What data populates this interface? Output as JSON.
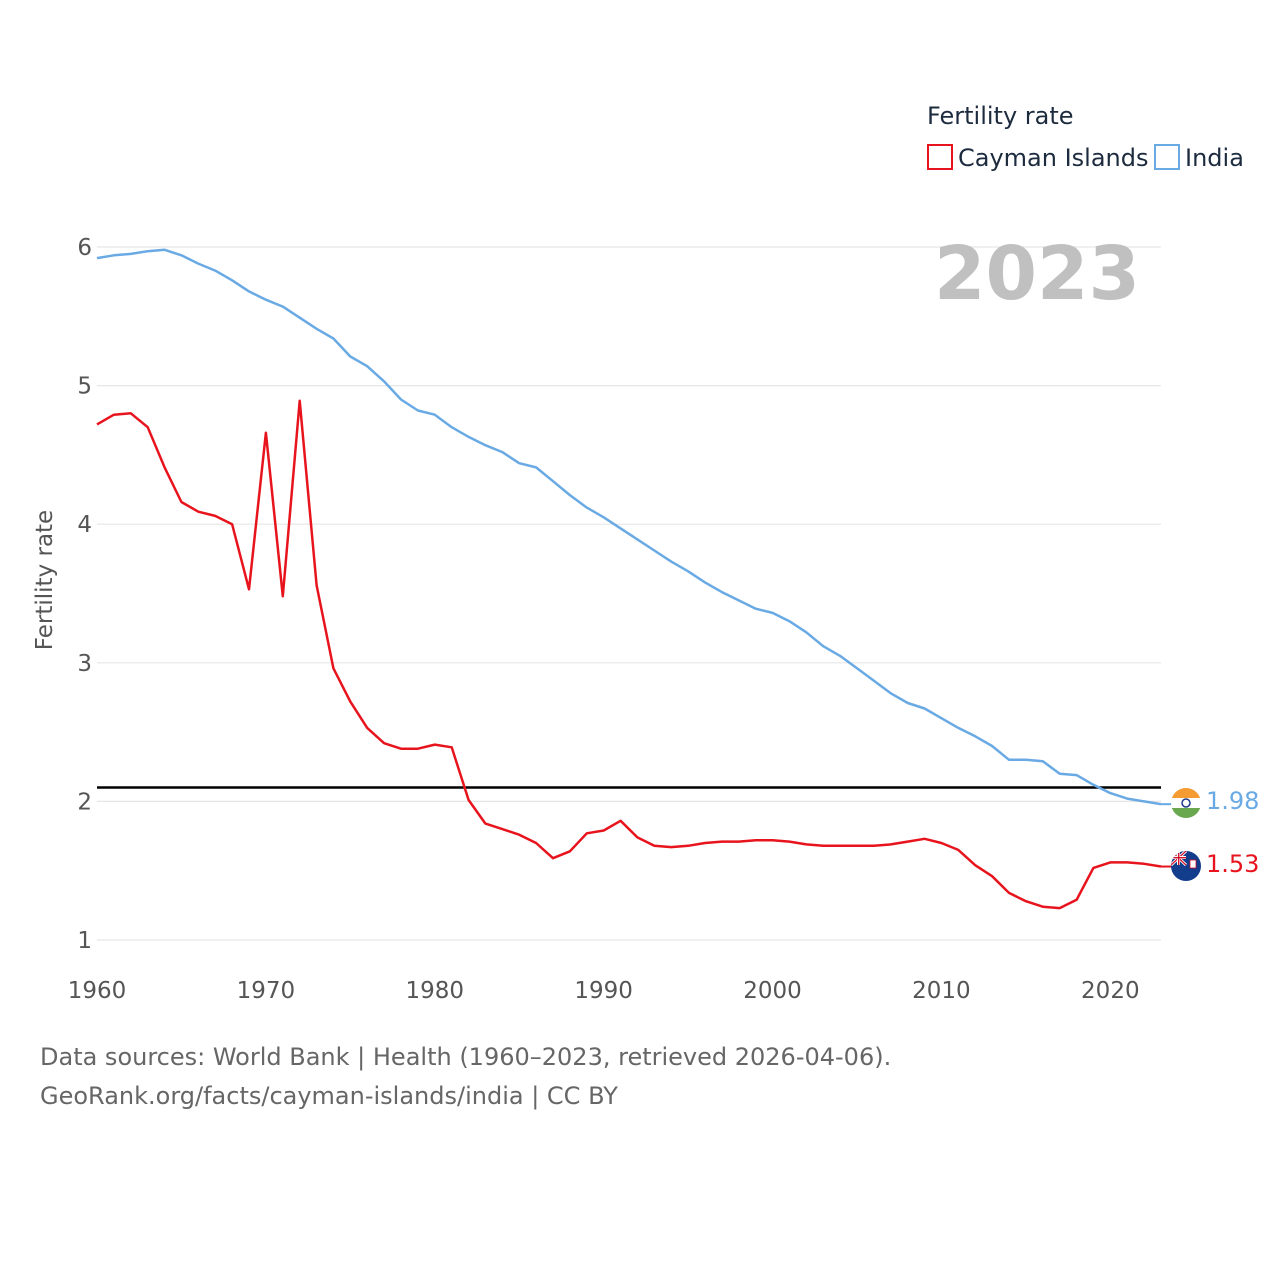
{
  "chart_data": {
    "type": "line",
    "legend_title": "Fertility rate",
    "ylabel": "Fertility rate",
    "xlabel": "",
    "year_label": "2023",
    "xlim": [
      1960,
      2023
    ],
    "ylim": [
      1,
      6
    ],
    "x_ticks": [
      "1960",
      "1970",
      "1980",
      "1990",
      "2000",
      "2010",
      "2020"
    ],
    "y_ticks": [
      "1",
      "2",
      "3",
      "4",
      "5",
      "6"
    ],
    "reference_line": 2.1,
    "x": [
      1960,
      1961,
      1962,
      1963,
      1964,
      1965,
      1966,
      1967,
      1968,
      1969,
      1970,
      1971,
      1972,
      1973,
      1974,
      1975,
      1976,
      1977,
      1978,
      1979,
      1980,
      1981,
      1982,
      1983,
      1984,
      1985,
      1986,
      1987,
      1988,
      1989,
      1990,
      1991,
      1992,
      1993,
      1994,
      1995,
      1996,
      1997,
      1998,
      1999,
      2000,
      2001,
      2002,
      2003,
      2004,
      2005,
      2006,
      2007,
      2008,
      2009,
      2010,
      2011,
      2012,
      2013,
      2014,
      2015,
      2016,
      2017,
      2018,
      2019,
      2020,
      2021,
      2022,
      2023
    ],
    "series": [
      {
        "name": "Cayman Islands",
        "color": "#e8141d",
        "end_label": "1.53",
        "values": [
          4.72,
          4.79,
          4.8,
          4.7,
          4.41,
          4.16,
          4.09,
          4.06,
          4.0,
          3.53,
          4.66,
          3.48,
          4.89,
          3.56,
          2.96,
          2.72,
          2.53,
          2.42,
          2.38,
          2.38,
          2.41,
          2.39,
          2.01,
          1.84,
          1.8,
          1.76,
          1.7,
          1.59,
          1.64,
          1.77,
          1.79,
          1.86,
          1.74,
          1.68,
          1.67,
          1.68,
          1.7,
          1.71,
          1.71,
          1.72,
          1.72,
          1.71,
          1.69,
          1.68,
          1.68,
          1.68,
          1.68,
          1.69,
          1.71,
          1.73,
          1.7,
          1.65,
          1.54,
          1.46,
          1.34,
          1.28,
          1.24,
          1.23,
          1.29,
          1.52,
          1.56,
          1.56,
          1.55,
          1.53
        ]
      },
      {
        "name": "India",
        "color": "#6aaae4",
        "end_label": "1.98",
        "values": [
          5.92,
          5.94,
          5.95,
          5.97,
          5.98,
          5.94,
          5.88,
          5.83,
          5.76,
          5.68,
          5.62,
          5.57,
          5.49,
          5.41,
          5.34,
          5.21,
          5.14,
          5.03,
          4.9,
          4.82,
          4.79,
          4.7,
          4.63,
          4.57,
          4.52,
          4.44,
          4.41,
          4.31,
          4.21,
          4.12,
          4.05,
          3.97,
          3.89,
          3.81,
          3.73,
          3.66,
          3.58,
          3.51,
          3.45,
          3.39,
          3.36,
          3.3,
          3.22,
          3.12,
          3.05,
          2.96,
          2.87,
          2.78,
          2.71,
          2.67,
          2.6,
          2.53,
          2.47,
          2.4,
          2.3,
          2.3,
          2.29,
          2.2,
          2.19,
          2.12,
          2.06,
          2.02,
          2.0,
          1.98
        ]
      }
    ]
  },
  "source": {
    "line1": "Data sources: World Bank | Health (1960–2023, retrieved 2026-04-06).",
    "line2": "GeoRank.org/facts/cayman-islands/india | CC BY"
  }
}
